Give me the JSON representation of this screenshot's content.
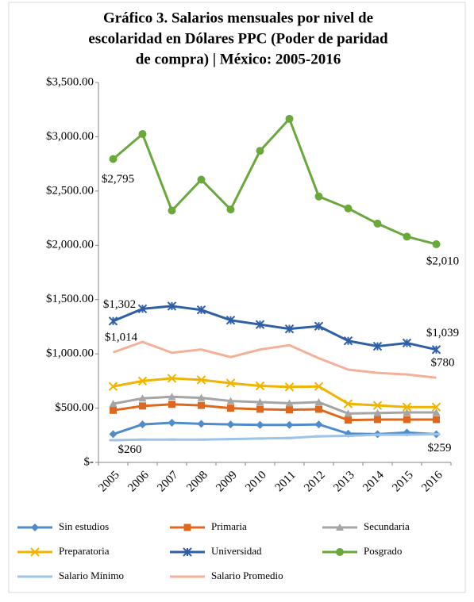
{
  "chart_data": {
    "type": "line",
    "title": [
      "Gráfico 3. Salarios mensuales por nivel de",
      "escolaridad  en Dólares PPC (Poder de paridad",
      "de compra) | México: 2005-2016"
    ],
    "categories": [
      "2005",
      "2006",
      "2007",
      "2008",
      "2009",
      "2010",
      "2011",
      "2012",
      "2013",
      "2014",
      "2015",
      "2016"
    ],
    "ylim": [
      0,
      3500
    ],
    "yticks": [
      {
        "value": 0,
        "label": "$-"
      },
      {
        "value": 500,
        "label": "$500.00"
      },
      {
        "value": 1000,
        "label": "$1,000.00"
      },
      {
        "value": 1500,
        "label": "$1,500.00"
      },
      {
        "value": 2000,
        "label": "$2,000.00"
      },
      {
        "value": 2500,
        "label": "$2,500.00"
      },
      {
        "value": 3000,
        "label": "$3,000.00"
      },
      {
        "value": 3500,
        "label": "$3,500.00"
      }
    ],
    "grid": false,
    "series": [
      {
        "name": "Sin estudios",
        "color": "#4f8cc9",
        "marker": "diamond",
        "values": [
          260,
          350,
          365,
          355,
          350,
          345,
          345,
          350,
          265,
          260,
          275,
          259
        ],
        "value_labels": [
          "$260",
          null,
          null,
          null,
          null,
          null,
          null,
          null,
          null,
          null,
          null,
          "$259"
        ]
      },
      {
        "name": "Primaria",
        "color": "#e0681e",
        "marker": "square",
        "values": [
          480,
          520,
          535,
          525,
          500,
          490,
          485,
          490,
          390,
          395,
          395,
          395
        ]
      },
      {
        "name": "Secundaria",
        "color": "#a5a5a5",
        "marker": "triangle",
        "values": [
          540,
          590,
          605,
          595,
          565,
          555,
          545,
          555,
          450,
          455,
          460,
          460
        ]
      },
      {
        "name": "Preparatoria",
        "color": "#f0b400",
        "marker": "x",
        "values": [
          700,
          750,
          775,
          760,
          730,
          705,
          695,
          700,
          540,
          525,
          510,
          510
        ]
      },
      {
        "name": "Universidad",
        "color": "#2f5fa7",
        "marker": "star",
        "values": [
          1302,
          1415,
          1440,
          1405,
          1310,
          1270,
          1230,
          1255,
          1120,
          1070,
          1100,
          1039
        ],
        "value_labels": [
          "$1,302",
          null,
          null,
          null,
          null,
          null,
          null,
          null,
          null,
          null,
          null,
          "$1,039"
        ]
      },
      {
        "name": "Posgrado",
        "color": "#6aa83c",
        "marker": "circle",
        "values": [
          2795,
          3025,
          2320,
          2605,
          2330,
          2870,
          3165,
          2450,
          2340,
          2200,
          2080,
          2010
        ],
        "value_labels": [
          "$2,795",
          null,
          null,
          null,
          null,
          null,
          null,
          null,
          null,
          null,
          null,
          "$2,010"
        ]
      },
      {
        "name": "Salario Mínimo",
        "color": "#9dc3e6",
        "marker": "dash",
        "values": [
          205,
          210,
          210,
          210,
          215,
          220,
          225,
          240,
          245,
          255,
          255,
          260
        ]
      },
      {
        "name": "Salario Promedio",
        "color": "#f4b19a",
        "marker": "none",
        "values": [
          1014,
          1110,
          1010,
          1040,
          970,
          1040,
          1080,
          960,
          855,
          825,
          810,
          780
        ],
        "value_labels": [
          "$1,014",
          null,
          null,
          null,
          null,
          null,
          null,
          null,
          null,
          null,
          null,
          "$780"
        ]
      }
    ]
  }
}
